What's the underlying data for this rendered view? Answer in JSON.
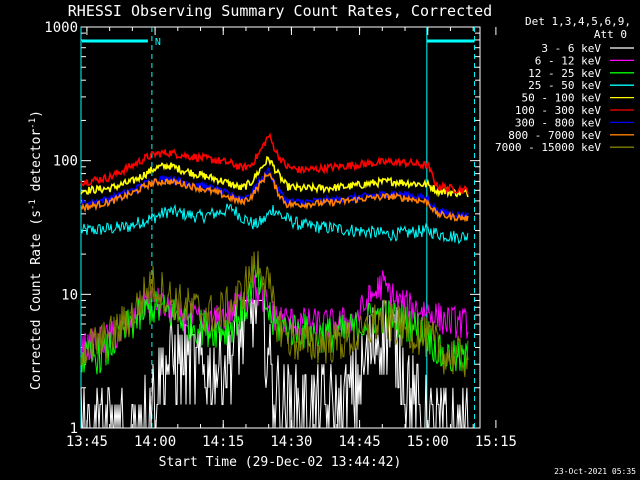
{
  "chart_data": {
    "type": "line",
    "title": "RHESSI Observing Summary Count Rates, Corrected",
    "xlabel": "Start Time (29-Dec-02 13:44:42)",
    "ylabel_main": "Corrected Count Rate (s",
    "ylabel_sup1": "-1",
    "ylabel_mid": " detector",
    "ylabel_sup2": "-1",
    "ylabel_end": ")",
    "yscale": "log",
    "ylim": [
      1,
      1000
    ],
    "xlim_minutes": [
      13.7,
      101.5
    ],
    "x_ticks": [
      {
        "m": 15,
        "label": "13:45"
      },
      {
        "m": 30,
        "label": "14:00"
      },
      {
        "m": 45,
        "label": "14:15"
      },
      {
        "m": 60,
        "label": "14:30"
      },
      {
        "m": 75,
        "label": "14:45"
      },
      {
        "m": 90,
        "label": "15:00"
      },
      {
        "m": 105,
        "label": "15:15"
      }
    ],
    "y_ticks": [
      {
        "v": 1,
        "label": "1"
      },
      {
        "v": 10,
        "label": "10"
      },
      {
        "v": 100,
        "label": "100"
      },
      {
        "v": 1000,
        "label": "1000"
      }
    ],
    "legend_header": [
      "Det 1,3,4,5,6,9,",
      "Att 0"
    ],
    "series": [
      {
        "name": "3 - 6 keV",
        "color": "#ffffff",
        "x": [
          15,
          24,
          29,
          31,
          34,
          38,
          42,
          46,
          50,
          52,
          54,
          56,
          58,
          61,
          63,
          66,
          70,
          74,
          76,
          79,
          82,
          85,
          88,
          90,
          91
        ],
        "values": [
          1,
          1,
          1.5,
          2.5,
          3.2,
          3,
          2.5,
          3.2,
          6,
          9.5,
          6,
          2,
          1.5,
          1.3,
          1.4,
          1.4,
          1.3,
          2,
          3,
          5,
          5,
          2.5,
          1.3,
          1,
          1
        ]
      },
      {
        "name": "6 - 12 keV",
        "color": "#ff00ff",
        "x": [
          15,
          24,
          27,
          29,
          32,
          35,
          38,
          42,
          46,
          50,
          52,
          54,
          56,
          60,
          66,
          70,
          74,
          77,
          80,
          83,
          86,
          90,
          93,
          96,
          99
        ],
        "values": [
          4,
          5.5,
          8,
          9.5,
          8,
          7,
          6.5,
          6,
          7,
          9.5,
          11,
          9,
          7,
          6.2,
          6,
          6,
          6.5,
          9,
          12,
          9,
          8,
          7.5,
          6.5,
          6.2,
          6
        ]
      },
      {
        "name": "12 - 25 keV",
        "color": "#00ff00",
        "x": [
          15,
          19,
          22,
          26,
          29,
          32,
          35,
          38,
          42,
          46,
          50,
          52,
          54,
          56,
          60,
          66,
          70,
          74,
          77,
          80,
          83,
          86,
          90,
          93,
          96,
          99
        ],
        "values": [
          3.3,
          3.6,
          5,
          6.5,
          8,
          7.5,
          7,
          6,
          5.5,
          5.5,
          8,
          14,
          9,
          6,
          5.5,
          5,
          5,
          5.5,
          6.5,
          7,
          6.5,
          6,
          5,
          3.5,
          3.3,
          3.2
        ]
      },
      {
        "name": "25 - 50 keV",
        "color": "#00ffff",
        "x": [
          15,
          20,
          24,
          27,
          30,
          33,
          36,
          40,
          44,
          47,
          49,
          52,
          54,
          56,
          58,
          62,
          66,
          70,
          74,
          78,
          82,
          86,
          90,
          93,
          96,
          99
        ],
        "values": [
          30,
          31,
          32,
          35,
          38,
          42,
          40,
          38,
          41,
          44,
          38,
          33,
          36,
          44,
          38,
          33,
          32,
          31,
          30,
          29,
          28,
          29,
          30,
          28,
          27,
          27
        ]
      },
      {
        "name": "50 - 100 keV",
        "color": "#ffff00",
        "x": [
          15,
          20,
          25,
          28,
          30,
          33,
          36,
          40,
          44,
          47,
          49,
          51,
          53,
          55,
          57,
          59,
          62,
          66,
          70,
          74,
          78,
          82,
          86,
          90,
          92,
          95,
          99
        ],
        "values": [
          60,
          62,
          70,
          80,
          88,
          92,
          85,
          78,
          72,
          66,
          62,
          68,
          85,
          104,
          80,
          64,
          62,
          62,
          63,
          65,
          68,
          70,
          68,
          66,
          60,
          58,
          57
        ]
      },
      {
        "name": "100 - 300 keV",
        "color": "#ff0000",
        "x": [
          15,
          20,
          25,
          28,
          30,
          33,
          36,
          40,
          44,
          47,
          49,
          51,
          53,
          55,
          57,
          59,
          62,
          66,
          70,
          74,
          78,
          82,
          86,
          90,
          92,
          95,
          99
        ],
        "values": [
          70,
          75,
          92,
          105,
          112,
          115,
          110,
          105,
          100,
          95,
          88,
          92,
          115,
          155,
          110,
          90,
          85,
          87,
          90,
          93,
          96,
          98,
          96,
          92,
          65,
          62,
          60
        ]
      },
      {
        "name": "300 - 800 keV",
        "color": "#0000ff",
        "x": [
          15,
          20,
          25,
          28,
          30,
          33,
          36,
          40,
          44,
          47,
          49,
          51,
          53,
          55,
          57,
          59,
          62,
          66,
          70,
          74,
          78,
          82,
          86,
          90,
          92,
          95,
          99
        ],
        "values": [
          48,
          52,
          60,
          68,
          72,
          74,
          70,
          65,
          60,
          55,
          52,
          56,
          70,
          85,
          62,
          50,
          49,
          50,
          51,
          53,
          55,
          57,
          55,
          52,
          42,
          40,
          39
        ]
      },
      {
        "name": "800 - 7000 keV",
        "color": "#ff8000",
        "x": [
          15,
          20,
          25,
          28,
          30,
          33,
          36,
          40,
          44,
          47,
          49,
          51,
          53,
          55,
          57,
          59,
          62,
          66,
          70,
          74,
          78,
          82,
          86,
          90,
          92,
          95,
          99
        ],
        "values": [
          45,
          49,
          57,
          65,
          69,
          70,
          67,
          62,
          57,
          52,
          49,
          53,
          66,
          82,
          58,
          47,
          47,
          48,
          49,
          51,
          53,
          54,
          52,
          49,
          40,
          38,
          37
        ]
      },
      {
        "name": "7000 - 15000 keV",
        "color": "#808000",
        "x": [
          15,
          19,
          22,
          25,
          27,
          29,
          31,
          34,
          37,
          40,
          43,
          46,
          49,
          51,
          53,
          55,
          57,
          60,
          64,
          68,
          72,
          76,
          78,
          80,
          82,
          85,
          88,
          91,
          94,
          97,
          99
        ],
        "values": [
          4,
          4.5,
          5.5,
          7,
          9,
          12,
          11,
          9,
          8,
          7.5,
          7,
          8,
          10,
          14,
          17,
          11,
          6,
          4.5,
          4.2,
          4.3,
          4.5,
          5,
          6,
          6.5,
          6,
          5.5,
          5,
          4.5,
          3.5,
          3.4,
          3.3
        ]
      }
    ],
    "attenuator_lines": [
      {
        "m": 29.3,
        "style": "dashed"
      },
      {
        "m": 89.8,
        "style": "solid"
      },
      {
        "m": 100.3,
        "style": "dashed"
      }
    ],
    "night_bars": [
      {
        "from": 13.9,
        "to": 29.3,
        "label": "N"
      },
      {
        "from": 89.8,
        "to": 100.3,
        "label": ""
      }
    ]
  },
  "footer": {
    "date": "23-Oct-2021 05:35"
  }
}
